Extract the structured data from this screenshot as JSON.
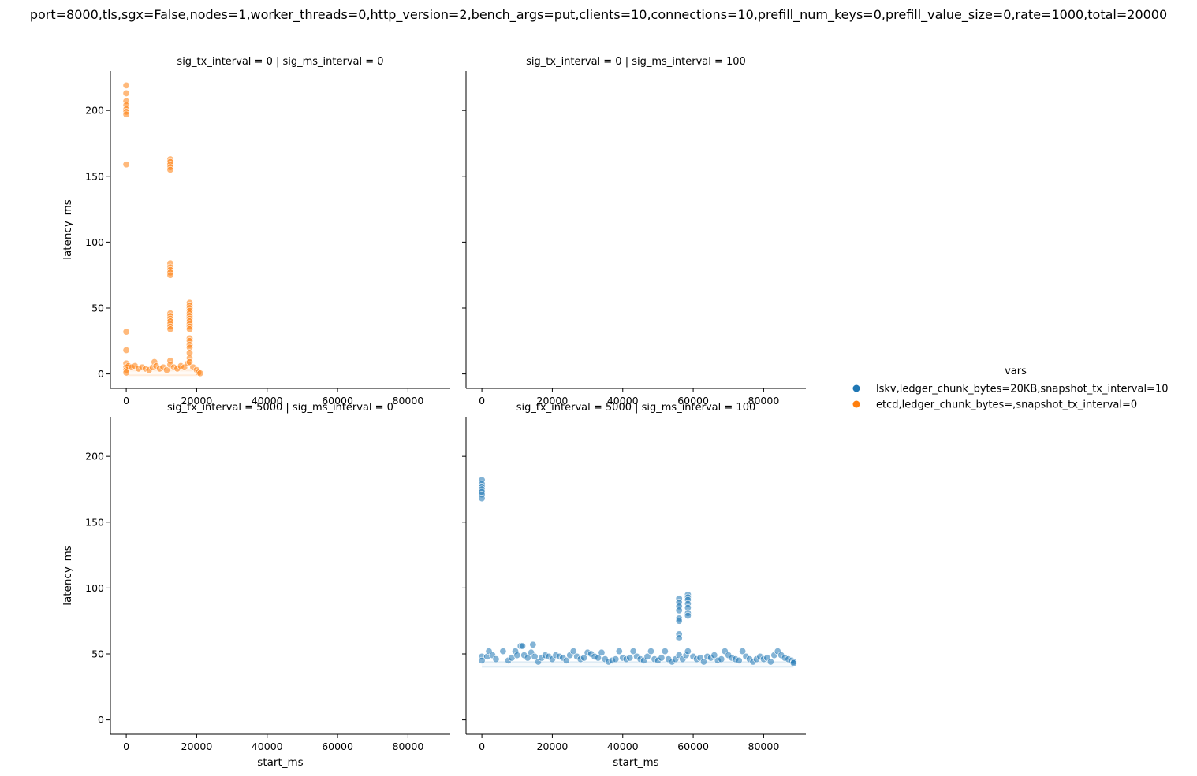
{
  "chart_data": {
    "type": "scatter",
    "title": "port=8000,tls,sgx=False,nodes=1,worker_threads=0,http_version=2,bench_args=put,clients=10,connections=10,prefill_num_keys=0,prefill_value_size=0,rate=1000,total=20000",
    "xlabel": "start_ms",
    "ylabel": "latency_ms",
    "xlim": [
      -4500,
      92000
    ],
    "ylim": [
      -11,
      230
    ],
    "xticks": [
      0,
      20000,
      40000,
      60000,
      80000
    ],
    "yticks": [
      0,
      50,
      100,
      150,
      200
    ],
    "legend": {
      "title": "vars",
      "placement": "right",
      "entries": [
        {
          "label": "lskv,ledger_chunk_bytes=20KB,snapshot_tx_interval=10",
          "color": "#1f77b4"
        },
        {
          "label": "etcd,ledger_chunk_bytes=,snapshot_tx_interval=0",
          "color": "#ff7f0e"
        }
      ]
    },
    "facets": [
      {
        "title": "sig_tx_interval = 0 | sig_ms_interval = 0",
        "series": [
          {
            "name": "etcd,ledger_chunk_bytes=,snapshot_tx_interval=0",
            "color": "#ff7f0e",
            "points": [
              [
                0,
                219
              ],
              [
                0,
                213
              ],
              [
                0,
                207
              ],
              [
                0,
                204
              ],
              [
                0,
                201
              ],
              [
                0,
                199
              ],
              [
                0,
                197
              ],
              [
                0,
                159
              ],
              [
                0,
                32
              ],
              [
                0,
                18
              ],
              [
                0,
                8
              ],
              [
                0,
                5
              ],
              [
                0,
                3
              ],
              [
                0,
                1
              ],
              [
                600,
                6
              ],
              [
                1500,
                5
              ],
              [
                2500,
                6
              ],
              [
                3500,
                4
              ],
              [
                4500,
                5
              ],
              [
                5500,
                4
              ],
              [
                6500,
                3
              ],
              [
                7500,
                5
              ],
              [
                8000,
                9
              ],
              [
                8500,
                6
              ],
              [
                9500,
                4
              ],
              [
                10500,
                5
              ],
              [
                11500,
                3
              ],
              [
                12500,
                163
              ],
              [
                12500,
                161
              ],
              [
                12500,
                159
              ],
              [
                12500,
                157
              ],
              [
                12500,
                155
              ],
              [
                12500,
                84
              ],
              [
                12500,
                81
              ],
              [
                12500,
                79
              ],
              [
                12500,
                77
              ],
              [
                12500,
                75
              ],
              [
                12500,
                46
              ],
              [
                12500,
                44
              ],
              [
                12500,
                42
              ],
              [
                12500,
                40
              ],
              [
                12500,
                38
              ],
              [
                12500,
                36
              ],
              [
                12500,
                34
              ],
              [
                12500,
                10
              ],
              [
                12500,
                7
              ],
              [
                13500,
                5
              ],
              [
                14500,
                4
              ],
              [
                15500,
                6
              ],
              [
                16500,
                5
              ],
              [
                17500,
                8
              ],
              [
                18000,
                54
              ],
              [
                18000,
                52
              ],
              [
                18000,
                50
              ],
              [
                18000,
                48
              ],
              [
                18000,
                46
              ],
              [
                18000,
                44
              ],
              [
                18000,
                42
              ],
              [
                18000,
                40
              ],
              [
                18000,
                38
              ],
              [
                18000,
                36
              ],
              [
                18000,
                34
              ],
              [
                18000,
                27
              ],
              [
                18000,
                25
              ],
              [
                18000,
                22
              ],
              [
                18000,
                20
              ],
              [
                18000,
                16
              ],
              [
                18000,
                12
              ],
              [
                18000,
                9
              ],
              [
                19000,
                5
              ],
              [
                20000,
                3
              ],
              [
                20500,
                1
              ],
              [
                21000,
                0.5
              ]
            ],
            "band": {
              "x_range": [
                0,
                21000
              ],
              "y": 0.8
            }
          }
        ]
      },
      {
        "title": "sig_tx_interval = 0 | sig_ms_interval = 100",
        "series": []
      },
      {
        "title": "sig_tx_interval = 5000 | sig_ms_interval = 0",
        "series": []
      },
      {
        "title": "sig_tx_interval = 5000 | sig_ms_interval = 100",
        "series": [
          {
            "name": "lskv,ledger_chunk_bytes=20KB,snapshot_tx_interval=10",
            "color": "#1f77b4",
            "points": [
              [
                0,
                182
              ],
              [
                0,
                179
              ],
              [
                0,
                177
              ],
              [
                0,
                175
              ],
              [
                0,
                173
              ],
              [
                0,
                171
              ],
              [
                0,
                168
              ],
              [
                0,
                48
              ],
              [
                0,
                45
              ],
              [
                1500,
                48
              ],
              [
                2000,
                52
              ],
              [
                3000,
                49
              ],
              [
                4000,
                46
              ],
              [
                6000,
                52
              ],
              [
                7500,
                45
              ],
              [
                8500,
                47
              ],
              [
                9500,
                52
              ],
              [
                10000,
                49
              ],
              [
                11000,
                56
              ],
              [
                11500,
                56
              ],
              [
                12000,
                49
              ],
              [
                13000,
                47
              ],
              [
                14000,
                51
              ],
              [
                14500,
                57
              ],
              [
                15000,
                48
              ],
              [
                16000,
                44
              ],
              [
                17000,
                47
              ],
              [
                18000,
                49
              ],
              [
                19000,
                48
              ],
              [
                20000,
                46
              ],
              [
                21000,
                49
              ],
              [
                22000,
                48
              ],
              [
                23000,
                47
              ],
              [
                24000,
                45
              ],
              [
                25000,
                49
              ],
              [
                26000,
                52
              ],
              [
                27000,
                48
              ],
              [
                28000,
                46
              ],
              [
                29000,
                47
              ],
              [
                30000,
                51
              ],
              [
                31000,
                50
              ],
              [
                32000,
                48
              ],
              [
                33000,
                47
              ],
              [
                34000,
                51
              ],
              [
                35000,
                46
              ],
              [
                36000,
                44
              ],
              [
                37000,
                45
              ],
              [
                38000,
                46
              ],
              [
                39000,
                52
              ],
              [
                40000,
                47
              ],
              [
                41000,
                46
              ],
              [
                42000,
                47
              ],
              [
                43000,
                52
              ],
              [
                44000,
                48
              ],
              [
                45000,
                46
              ],
              [
                46000,
                45
              ],
              [
                47000,
                48
              ],
              [
                48000,
                52
              ],
              [
                49000,
                46
              ],
              [
                50000,
                45
              ],
              [
                51000,
                47
              ],
              [
                52000,
                52
              ],
              [
                53000,
                46
              ],
              [
                54000,
                44
              ],
              [
                55000,
                46
              ],
              [
                56000,
                92
              ],
              [
                56000,
                89
              ],
              [
                56000,
                86
              ],
              [
                56000,
                83
              ],
              [
                56000,
                77
              ],
              [
                56000,
                75
              ],
              [
                56000,
                65
              ],
              [
                56000,
                62
              ],
              [
                56000,
                49
              ],
              [
                57000,
                46
              ],
              [
                58000,
                49
              ],
              [
                58500,
                95
              ],
              [
                58500,
                93
              ],
              [
                58500,
                91
              ],
              [
                58500,
                88
              ],
              [
                58500,
                85
              ],
              [
                58500,
                81
              ],
              [
                58500,
                79
              ],
              [
                58500,
                52
              ],
              [
                60000,
                48
              ],
              [
                61000,
                46
              ],
              [
                62000,
                47
              ],
              [
                63000,
                44
              ],
              [
                64000,
                48
              ],
              [
                65000,
                47
              ],
              [
                66000,
                49
              ],
              [
                67000,
                45
              ],
              [
                68000,
                46
              ],
              [
                69000,
                52
              ],
              [
                70000,
                49
              ],
              [
                71000,
                47
              ],
              [
                72000,
                46
              ],
              [
                73000,
                45
              ],
              [
                74000,
                52
              ],
              [
                75000,
                48
              ],
              [
                76000,
                46
              ],
              [
                77000,
                44
              ],
              [
                78000,
                46
              ],
              [
                79000,
                48
              ],
              [
                80000,
                46
              ],
              [
                81000,
                47
              ],
              [
                82000,
                44
              ],
              [
                83000,
                49
              ],
              [
                84000,
                52
              ],
              [
                85000,
                49
              ],
              [
                86000,
                47
              ],
              [
                87000,
                46
              ],
              [
                88000,
                45
              ],
              [
                88500,
                44
              ],
              [
                88500,
                43
              ]
            ],
            "band": {
              "x_range": [
                0,
                88500
              ],
              "y": 42
            }
          }
        ]
      }
    ]
  }
}
